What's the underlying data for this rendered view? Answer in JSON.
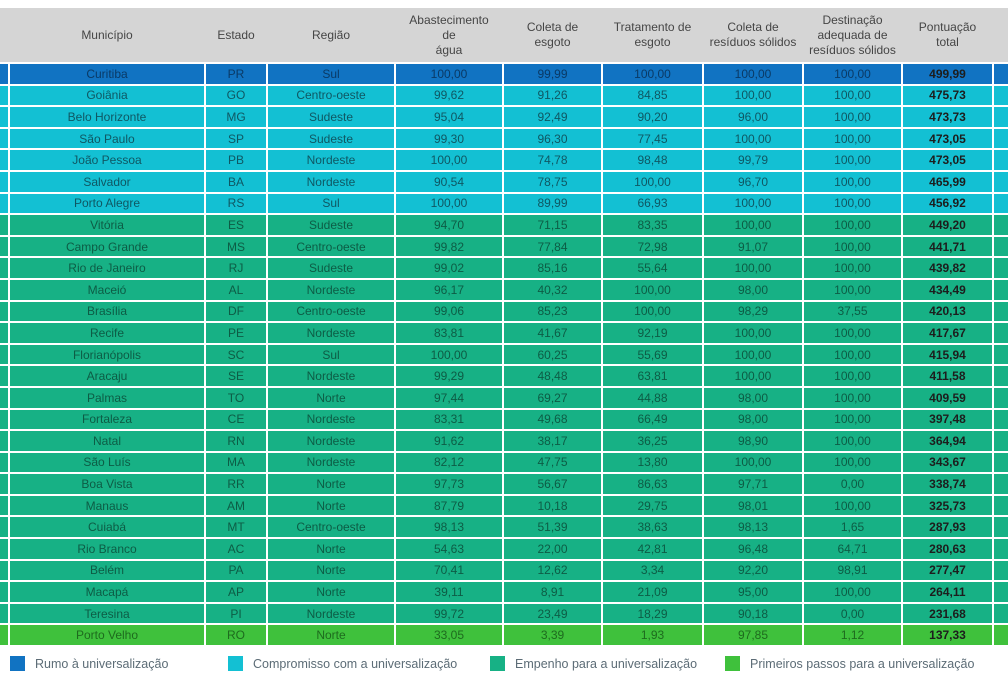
{
  "table": {
    "column_keys": [
      "municipio",
      "estado",
      "regiao",
      "agua",
      "coleta_esgoto",
      "tratamento_esgoto",
      "coleta_residuos",
      "destinacao",
      "pontuacao"
    ],
    "columns": [
      "Município",
      "Estado",
      "Região",
      "Abastecimento\nde\nágua",
      "Coleta de\nesgoto",
      "Tratamento de\nesgoto",
      "Coleta de\nresíduos sólidos",
      "Destinação\nadequada de\nresíduos sólidos",
      "Pontuação\ntotal"
    ],
    "rows": [
      {
        "cat": "rumo",
        "cells": [
          "Curitiba",
          "PR",
          "Sul",
          "100,00",
          "99,99",
          "100,00",
          "100,00",
          "100,00",
          "499,99"
        ]
      },
      {
        "cat": "compromisso",
        "cells": [
          "Goiânia",
          "GO",
          "Centro-oeste",
          "99,62",
          "91,26",
          "84,85",
          "100,00",
          "100,00",
          "475,73"
        ]
      },
      {
        "cat": "compromisso",
        "cells": [
          "Belo Horizonte",
          "MG",
          "Sudeste",
          "95,04",
          "92,49",
          "90,20",
          "96,00",
          "100,00",
          "473,73"
        ]
      },
      {
        "cat": "compromisso",
        "cells": [
          "São Paulo",
          "SP",
          "Sudeste",
          "99,30",
          "96,30",
          "77,45",
          "100,00",
          "100,00",
          "473,05"
        ]
      },
      {
        "cat": "compromisso",
        "cells": [
          "João Pessoa",
          "PB",
          "Nordeste",
          "100,00",
          "74,78",
          "98,48",
          "99,79",
          "100,00",
          "473,05"
        ]
      },
      {
        "cat": "compromisso",
        "cells": [
          "Salvador",
          "BA",
          "Nordeste",
          "90,54",
          "78,75",
          "100,00",
          "96,70",
          "100,00",
          "465,99"
        ]
      },
      {
        "cat": "compromisso",
        "cells": [
          "Porto Alegre",
          "RS",
          "Sul",
          "100,00",
          "89,99",
          "66,93",
          "100,00",
          "100,00",
          "456,92"
        ]
      },
      {
        "cat": "empenho",
        "cells": [
          "Vitória",
          "ES",
          "Sudeste",
          "94,70",
          "71,15",
          "83,35",
          "100,00",
          "100,00",
          "449,20"
        ]
      },
      {
        "cat": "empenho",
        "cells": [
          "Campo Grande",
          "MS",
          "Centro-oeste",
          "99,82",
          "77,84",
          "72,98",
          "91,07",
          "100,00",
          "441,71"
        ]
      },
      {
        "cat": "empenho",
        "cells": [
          "Rio de Janeiro",
          "RJ",
          "Sudeste",
          "99,02",
          "85,16",
          "55,64",
          "100,00",
          "100,00",
          "439,82"
        ]
      },
      {
        "cat": "empenho",
        "cells": [
          "Maceió",
          "AL",
          "Nordeste",
          "96,17",
          "40,32",
          "100,00",
          "98,00",
          "100,00",
          "434,49"
        ]
      },
      {
        "cat": "empenho",
        "cells": [
          "Brasília",
          "DF",
          "Centro-oeste",
          "99,06",
          "85,23",
          "100,00",
          "98,29",
          "37,55",
          "420,13"
        ]
      },
      {
        "cat": "empenho",
        "cells": [
          "Recife",
          "PE",
          "Nordeste",
          "83,81",
          "41,67",
          "92,19",
          "100,00",
          "100,00",
          "417,67"
        ]
      },
      {
        "cat": "empenho",
        "cells": [
          "Florianópolis",
          "SC",
          "Sul",
          "100,00",
          "60,25",
          "55,69",
          "100,00",
          "100,00",
          "415,94"
        ]
      },
      {
        "cat": "empenho",
        "cells": [
          "Aracaju",
          "SE",
          "Nordeste",
          "99,29",
          "48,48",
          "63,81",
          "100,00",
          "100,00",
          "411,58"
        ]
      },
      {
        "cat": "empenho",
        "cells": [
          "Palmas",
          "TO",
          "Norte",
          "97,44",
          "69,27",
          "44,88",
          "98,00",
          "100,00",
          "409,59"
        ]
      },
      {
        "cat": "empenho",
        "cells": [
          "Fortaleza",
          "CE",
          "Nordeste",
          "83,31",
          "49,68",
          "66,49",
          "98,00",
          "100,00",
          "397,48"
        ]
      },
      {
        "cat": "empenho",
        "cells": [
          "Natal",
          "RN",
          "Nordeste",
          "91,62",
          "38,17",
          "36,25",
          "98,90",
          "100,00",
          "364,94"
        ]
      },
      {
        "cat": "empenho",
        "cells": [
          "São Luís",
          "MA",
          "Nordeste",
          "82,12",
          "47,75",
          "13,80",
          "100,00",
          "100,00",
          "343,67"
        ]
      },
      {
        "cat": "empenho",
        "cells": [
          "Boa Vista",
          "RR",
          "Norte",
          "97,73",
          "56,67",
          "86,63",
          "97,71",
          "0,00",
          "338,74"
        ]
      },
      {
        "cat": "empenho",
        "cells": [
          "Manaus",
          "AM",
          "Norte",
          "87,79",
          "10,18",
          "29,75",
          "98,01",
          "100,00",
          "325,73"
        ]
      },
      {
        "cat": "empenho",
        "cells": [
          "Cuiabá",
          "MT",
          "Centro-oeste",
          "98,13",
          "51,39",
          "38,63",
          "98,13",
          "1,65",
          "287,93"
        ]
      },
      {
        "cat": "empenho",
        "cells": [
          "Rio Branco",
          "AC",
          "Norte",
          "54,63",
          "22,00",
          "42,81",
          "96,48",
          "64,71",
          "280,63"
        ]
      },
      {
        "cat": "empenho",
        "cells": [
          "Belém",
          "PA",
          "Norte",
          "70,41",
          "12,62",
          "3,34",
          "92,20",
          "98,91",
          "277,47"
        ]
      },
      {
        "cat": "empenho",
        "cells": [
          "Macapá",
          "AP",
          "Norte",
          "39,11",
          "8,91",
          "21,09",
          "95,00",
          "100,00",
          "264,11"
        ]
      },
      {
        "cat": "empenho",
        "cells": [
          "Teresina",
          "PI",
          "Nordeste",
          "99,72",
          "23,49",
          "18,29",
          "90,18",
          "0,00",
          "231,68"
        ]
      },
      {
        "cat": "primeiros",
        "cells": [
          "Porto Velho",
          "RO",
          "Norte",
          "33,05",
          "3,39",
          "1,93",
          "97,85",
          "1,12",
          "137,33"
        ]
      }
    ]
  },
  "categories": {
    "rumo": {
      "bg": "#1173c2",
      "text": "#0a3a66"
    },
    "compromisso": {
      "bg": "#13c0d3",
      "text": "#0f5763"
    },
    "empenho": {
      "bg": "#17b185",
      "text": "#0d5c45"
    },
    "primeiros": {
      "bg": "#3fc13c",
      "text": "#1e6b1e"
    }
  },
  "legend": [
    {
      "key": "rumo",
      "label": "Rumo à universalização"
    },
    {
      "key": "compromisso",
      "label": "Compromisso com a universalização"
    },
    {
      "key": "empenho",
      "label": "Empenho para a universalização"
    },
    {
      "key": "primeiros",
      "label": "Primeiros passos para a universalização"
    }
  ],
  "colors": {
    "header_bg": "#d5d5d5",
    "header_text": "#454545",
    "score_text": "#1d1d1d",
    "legend_text": "#5c6c76",
    "gridline": "#ffffff"
  }
}
